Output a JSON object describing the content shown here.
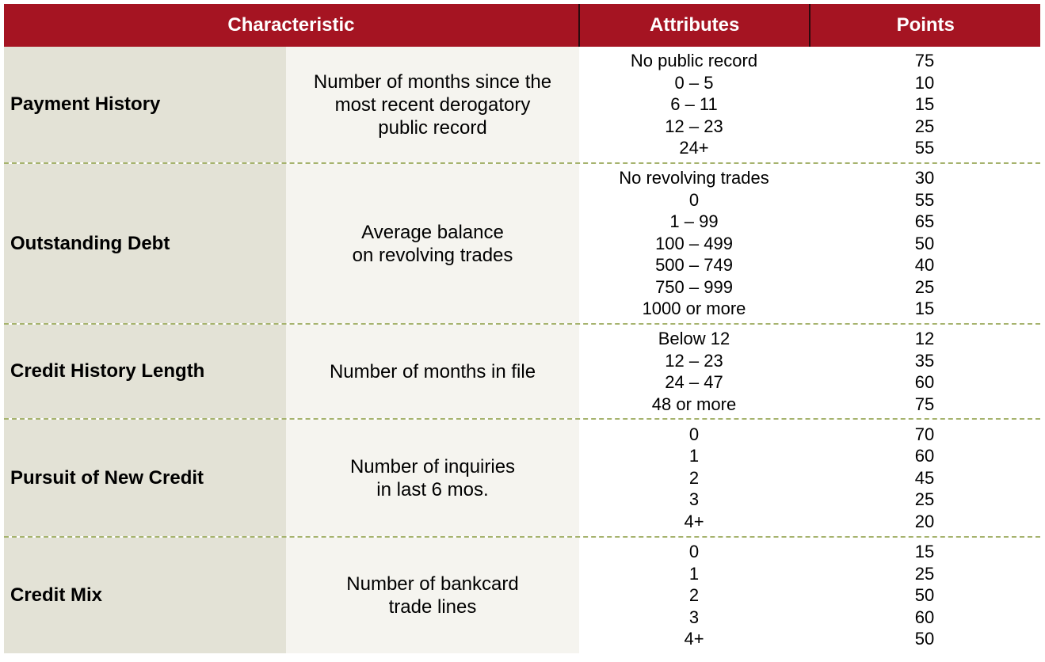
{
  "header": {
    "characteristic": "Characteristic",
    "attributes": "Attributes",
    "points": "Points"
  },
  "rows": [
    {
      "name": "Payment History",
      "desc": [
        "Number of months since the",
        "most recent derogatory",
        "public record"
      ],
      "attributes": [
        "No public record",
        "0 – 5",
        "6 – 11",
        "12 – 23",
        "24+"
      ],
      "points": [
        "75",
        "10",
        "15",
        "25",
        "55"
      ]
    },
    {
      "name": "Outstanding Debt",
      "desc": [
        "Average balance",
        "on revolving trades"
      ],
      "attributes": [
        "No revolving trades",
        "0",
        "1 – 99",
        "100 – 499",
        "500 – 749",
        "750 – 999",
        "1000 or more"
      ],
      "points": [
        "30",
        "55",
        "65",
        "50",
        "40",
        "25",
        "15"
      ]
    },
    {
      "name": "Credit History Length",
      "desc": [
        "Number of months in file"
      ],
      "attributes": [
        "Below 12",
        "12 – 23",
        "24 – 47",
        "48 or more"
      ],
      "points": [
        "12",
        "35",
        "60",
        "75"
      ]
    },
    {
      "name": "Pursuit of New Credit",
      "desc": [
        "Number of inquiries",
        "in last 6 mos."
      ],
      "attributes": [
        "0",
        "1",
        "2",
        "3",
        "4+"
      ],
      "points": [
        "70",
        "60",
        "45",
        "25",
        "20"
      ]
    },
    {
      "name": "Credit Mix",
      "desc": [
        "Number of bankcard",
        "trade lines"
      ],
      "attributes": [
        "0",
        "1",
        "2",
        "3",
        "4+"
      ],
      "points": [
        "15",
        "25",
        "50",
        "60",
        "50"
      ]
    }
  ],
  "colors": {
    "header_bg": "#a51422",
    "name_col_bg": "#e3e2d6",
    "desc_col_bg": "#f5f4ef",
    "separator": "#a6b36e"
  }
}
